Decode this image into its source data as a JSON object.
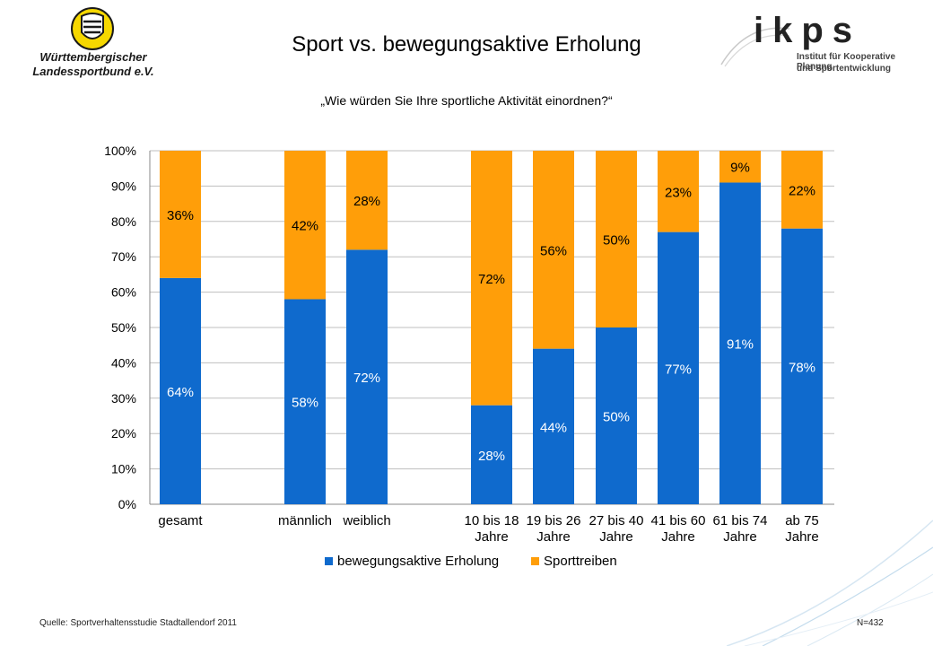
{
  "header": {
    "title": "Sport vs. bewegungsaktive Erholung",
    "question": "„Wie würden Sie Ihre sportliche Aktivität einordnen?“"
  },
  "logos": {
    "left": {
      "line1": "Württembergischer",
      "line2": "Landessportbund e.V."
    },
    "right": {
      "brand": "ikps",
      "line1": "Institut für Kooperative Planung",
      "line2": "und Sportentwicklung"
    }
  },
  "footer": {
    "source": "Quelle: Sportverhaltensstudie Stadtallendorf 2011",
    "n": "N=432"
  },
  "colors": {
    "blue": "#0F6ACD",
    "orange": "#FF9E09",
    "grid": "#BFBFBF",
    "axis": "#888888"
  },
  "chart_data": {
    "type": "bar",
    "stacked": true,
    "categories": [
      "gesamt",
      "männlich",
      "weiblich",
      "10 bis 18 Jahre",
      "19 bis 26 Jahre",
      "27 bis 40 Jahre",
      "41 bis 60 Jahre",
      "61 bis 74 Jahre",
      "ab 75 Jahre"
    ],
    "category_lines": [
      [
        "gesamt"
      ],
      [
        "männlich"
      ],
      [
        "weiblich"
      ],
      [
        "10 bis 18",
        "Jahre"
      ],
      [
        "19 bis 26",
        "Jahre"
      ],
      [
        "27 bis 40",
        "Jahre"
      ],
      [
        "41 bis 60",
        "Jahre"
      ],
      [
        "61 bis 74",
        "Jahre"
      ],
      [
        "ab 75",
        "Jahre"
      ]
    ],
    "series": [
      {
        "name": "bewegungsaktive Erholung",
        "values": [
          64,
          58,
          72,
          28,
          44,
          50,
          77,
          91,
          78
        ],
        "labels": [
          "64%",
          "58%",
          "72%",
          "28%",
          "44%",
          "50%",
          "77%",
          "91%",
          "78%"
        ]
      },
      {
        "name": "Sporttreiben",
        "values": [
          36,
          42,
          28,
          72,
          56,
          50,
          23,
          9,
          22
        ],
        "labels": [
          "36%",
          "42%",
          "28%",
          "72%",
          "56%",
          "50%",
          "23%",
          "9%",
          "22%"
        ]
      }
    ],
    "ylim": [
      0,
      100
    ],
    "yticks": [
      "0%",
      "10%",
      "20%",
      "30%",
      "40%",
      "50%",
      "60%",
      "70%",
      "80%",
      "90%",
      "100%"
    ],
    "legend": "bottom",
    "grid": true
  }
}
